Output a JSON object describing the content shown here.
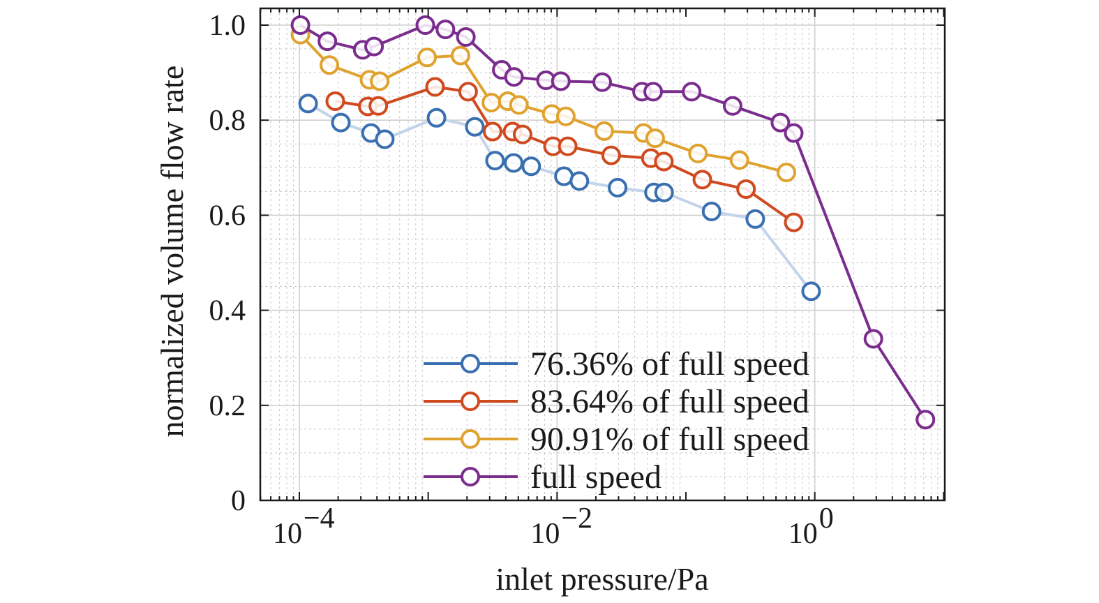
{
  "chart_data": {
    "type": "line",
    "xscale": "log",
    "xlabel": "inlet pressure/Pa",
    "ylabel": "normalized volume flow rate",
    "xlim": [
      5e-05,
      15
    ],
    "ylim": [
      0,
      1.04
    ],
    "grid": true,
    "legend_position": "bottom-right",
    "x_ticks": [
      {
        "value": 0.0001,
        "base": "10",
        "exp": "−4"
      },
      {
        "value": 0.01,
        "base": "10",
        "exp": "−2"
      },
      {
        "value": 1,
        "base": "10",
        "exp": "0"
      }
    ],
    "y_ticks": [
      {
        "value": 0,
        "label": "0"
      },
      {
        "value": 0.2,
        "label": "0.2"
      },
      {
        "value": 0.4,
        "label": "0.4"
      },
      {
        "value": 0.6,
        "label": "0.6"
      },
      {
        "value": 0.8,
        "label": "0.8"
      },
      {
        "value": 1.0,
        "label": "1.0"
      }
    ],
    "series": [
      {
        "name": "76.36% of full speed",
        "color": "#3a6fb0",
        "line_color": "#c3d4ea",
        "x": [
          0.000117,
          0.00021,
          0.00036,
          0.00046,
          0.00116,
          0.0023,
          0.0033,
          0.0046,
          0.0063,
          0.0113,
          0.0149,
          0.0295,
          0.0565,
          0.0677,
          0.1581,
          0.3452,
          0.9367
        ],
        "y": [
          0.835,
          0.795,
          0.773,
          0.76,
          0.805,
          0.786,
          0.715,
          0.71,
          0.703,
          0.682,
          0.672,
          0.658,
          0.648,
          0.648,
          0.608,
          0.592,
          0.44
        ]
      },
      {
        "name": "83.64% of full speed",
        "color": "#d04a20",
        "line_color": "#d04a20",
        "x": [
          0.00019,
          0.00034,
          0.00041,
          0.00113,
          0.00204,
          0.00316,
          0.00451,
          0.0054,
          0.0093,
          0.0121,
          0.0263,
          0.0534,
          0.0674,
          0.1341,
          0.2927,
          0.6864
        ],
        "y": [
          0.84,
          0.829,
          0.83,
          0.87,
          0.86,
          0.776,
          0.776,
          0.77,
          0.745,
          0.745,
          0.726,
          0.72,
          0.713,
          0.675,
          0.655,
          0.585
        ]
      },
      {
        "name": "90.91% of full speed",
        "color": "#e0a22f",
        "line_color": "#e0a22f",
        "x": [
          0.000102,
          0.000171,
          0.00035,
          0.00042,
          0.00098,
          0.00178,
          0.00309,
          0.00415,
          0.00506,
          0.0091,
          0.0117,
          0.0232,
          0.0469,
          0.0577,
          0.124,
          0.2601,
          0.6021
        ],
        "y": [
          0.98,
          0.916,
          0.885,
          0.882,
          0.932,
          0.936,
          0.837,
          0.84,
          0.832,
          0.813,
          0.808,
          0.777,
          0.773,
          0.762,
          0.73,
          0.716,
          0.69
        ]
      },
      {
        "name": "full speed",
        "color": "#7b2d8e",
        "line_color": "#7b2d8e",
        "x": [
          0.000102,
          0.000165,
          0.00031,
          0.00038,
          0.00095,
          0.00136,
          0.00196,
          0.00372,
          0.00463,
          0.0082,
          0.0107,
          0.0224,
          0.0456,
          0.0557,
          0.1107,
          0.2303,
          0.5408,
          0.6864,
          2.85,
          7.22
        ],
        "y": [
          1.0,
          0.966,
          0.948,
          0.955,
          1.0,
          0.991,
          0.975,
          0.906,
          0.891,
          0.884,
          0.882,
          0.88,
          0.86,
          0.86,
          0.86,
          0.83,
          0.795,
          0.773,
          0.34,
          0.17
        ]
      }
    ]
  }
}
